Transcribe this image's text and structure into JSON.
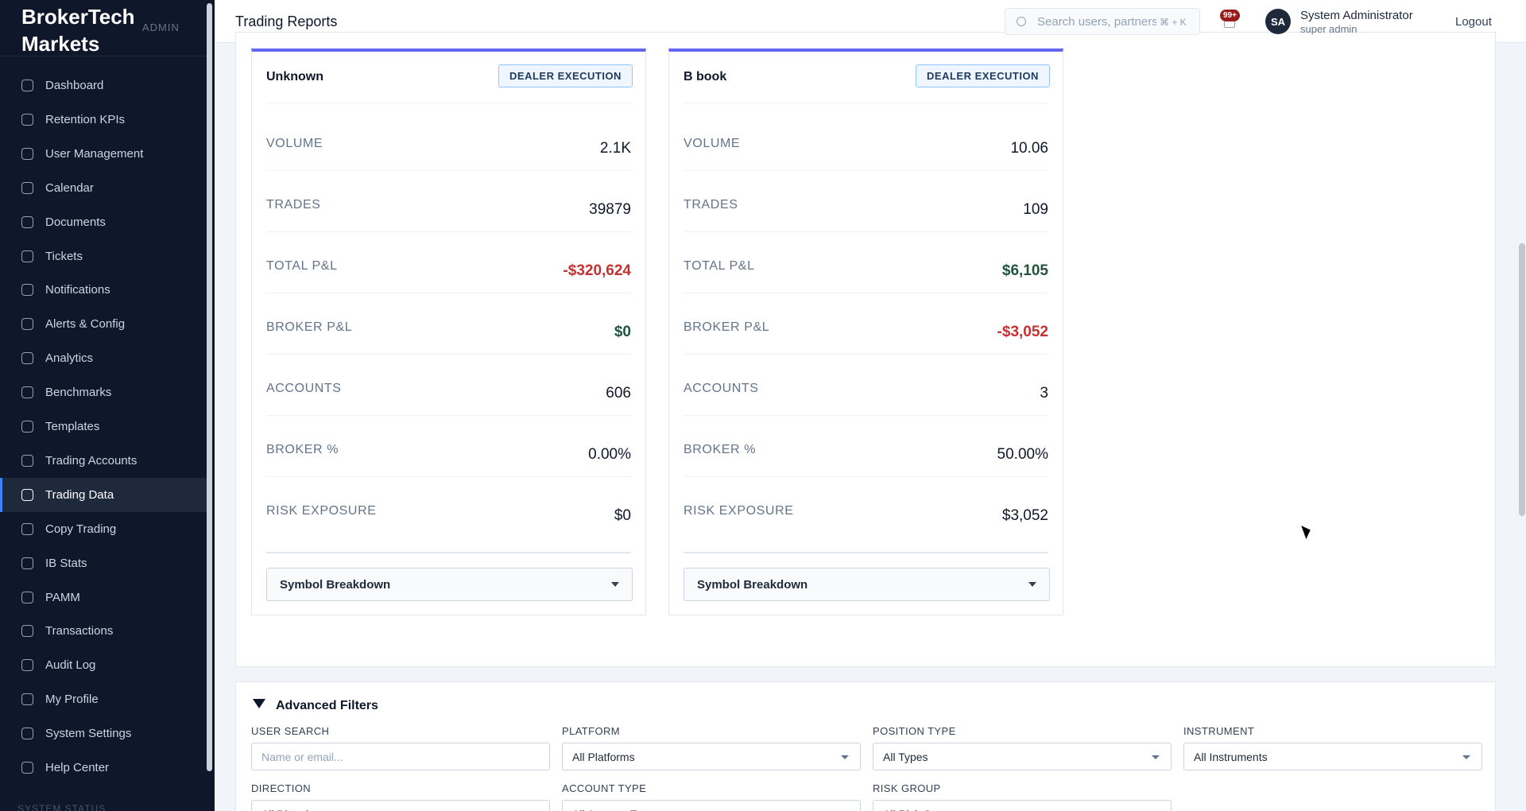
{
  "sidebar": {
    "brand": "BrokerTech Markets",
    "badge": "ADMIN",
    "active_index": 12,
    "nav": [
      "Dashboard",
      "Retention KPIs",
      "User Management",
      "Calendar",
      "Documents",
      "Tickets",
      "Notifications",
      "Alerts & Config",
      "Analytics",
      "Benchmarks",
      "Templates",
      "Trading Accounts",
      "Trading Data",
      "Copy Trading",
      "IB Stats",
      "PAMM",
      "Transactions",
      "Audit Log",
      "My Profile",
      "System Settings",
      "Help Center"
    ],
    "footer": "SYSTEM STATUS"
  },
  "header": {
    "title": "Trading Reports",
    "search_placeholder": "Search users, partners",
    "shortcut": "⌘ + K",
    "notifications": "99+",
    "avatar": "SA",
    "user_name": "System Administrator",
    "user_role": "super admin",
    "logout": "Logout"
  },
  "cards": [
    {
      "name": "Unknown",
      "tag": "DEALER EXECUTION",
      "breakdown": "Symbol Breakdown",
      "rows": [
        {
          "label": "VOLUME",
          "value": "2.1K"
        },
        {
          "label": "TRADES",
          "value": "39879"
        },
        {
          "label": "TOTAL P&L",
          "value": "-$320,624",
          "color": "#c53030"
        },
        {
          "label": "BROKER P&L",
          "value": "$0",
          "color": "#22543d"
        },
        {
          "label": "ACCOUNTS",
          "value": "606"
        },
        {
          "label": "BROKER %",
          "value": "0.00%"
        },
        {
          "label": "RISK EXPOSURE",
          "value": "$0"
        }
      ]
    },
    {
      "name": "B book",
      "tag": "DEALER EXECUTION",
      "breakdown": "Symbol Breakdown",
      "rows": [
        {
          "label": "VOLUME",
          "value": "10.06"
        },
        {
          "label": "TRADES",
          "value": "109"
        },
        {
          "label": "TOTAL P&L",
          "value": "$6,105",
          "color": "#22543d"
        },
        {
          "label": "BROKER P&L",
          "value": "-$3,052",
          "color": "#c53030"
        },
        {
          "label": "ACCOUNTS",
          "value": "3"
        },
        {
          "label": "BROKER %",
          "value": "50.00%"
        },
        {
          "label": "RISK EXPOSURE",
          "value": "$3,052"
        }
      ]
    }
  ],
  "filters": {
    "title": "Advanced Filters",
    "fields": [
      {
        "label": "USER SEARCH",
        "placeholder": "Name or email...",
        "select": false
      },
      {
        "label": "PLATFORM",
        "placeholder": "All Platforms",
        "select": true
      },
      {
        "label": "POSITION TYPE",
        "placeholder": "All Types",
        "select": true
      },
      {
        "label": "INSTRUMENT",
        "placeholder": "All Instruments",
        "select": true
      },
      {
        "label": "DIRECTION",
        "placeholder": "All Directions",
        "select": true
      },
      {
        "label": "ACCOUNT TYPE",
        "placeholder": "All Account Types",
        "select": true
      },
      {
        "label": "RISK GROUP",
        "placeholder": "All Risk Groups",
        "select": true
      }
    ]
  }
}
